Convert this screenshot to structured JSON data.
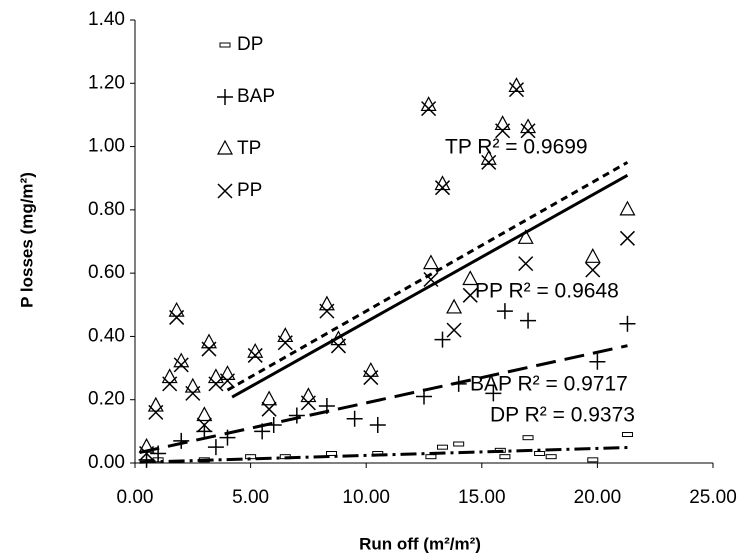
{
  "chart_data": {
    "type": "scatter",
    "x_label": "Run off (m²/m²)",
    "y_label": "P losses (mg/m²)",
    "xlim": [
      0,
      25
    ],
    "ylim": [
      0,
      1.4
    ],
    "xticks": [
      {
        "value": 0,
        "label": "0.00"
      },
      {
        "value": 5,
        "label": "5.00"
      },
      {
        "value": 10,
        "label": "10.00"
      },
      {
        "value": 15,
        "label": "15.00"
      },
      {
        "value": 20,
        "label": "20.00"
      },
      {
        "value": 25,
        "label": "25.00"
      }
    ],
    "yticks": [
      {
        "value": 0,
        "label": "0.00"
      },
      {
        "value": 0.2,
        "label": "0.20"
      },
      {
        "value": 0.4,
        "label": "0.40"
      },
      {
        "value": 0.6,
        "label": "0.60"
      },
      {
        "value": 0.8,
        "label": "0.80"
      },
      {
        "value": 1.0,
        "label": "1.00"
      },
      {
        "value": 1.2,
        "label": "1.20"
      },
      {
        "value": 1.4,
        "label": "1.40"
      }
    ],
    "series": [
      {
        "name": "DP",
        "marker": "dash",
        "color": "#000000",
        "x": [
          21.3,
          17.0,
          14.0,
          13.3,
          15.8,
          17.5,
          19.8,
          10.5,
          8.5,
          6.5,
          5.0,
          3.0,
          1.0,
          12.8,
          16.0,
          18.0
        ],
        "values": [
          0.09,
          0.08,
          0.06,
          0.05,
          0.04,
          0.03,
          0.01,
          0.03,
          0.03,
          0.02,
          0.02,
          0.01,
          0.01,
          0.02,
          0.02,
          0.02
        ]
      },
      {
        "name": "BAP",
        "marker": "plus",
        "color": "#000000",
        "x": [
          13.3,
          16.0,
          17.0,
          15.5,
          14.0,
          12.5,
          10.5,
          9.5,
          8.3,
          7.0,
          5.5,
          4.0,
          3.0,
          2.0,
          1.0,
          20.0,
          21.3,
          6.0,
          3.5,
          0.5
        ],
        "values": [
          0.39,
          0.48,
          0.45,
          0.22,
          0.25,
          0.21,
          0.12,
          0.14,
          0.18,
          0.15,
          0.1,
          0.08,
          0.1,
          0.07,
          0.03,
          0.32,
          0.44,
          0.12,
          0.05,
          0.01
        ]
      },
      {
        "name": "TP",
        "marker": "triangle",
        "color": "#000000",
        "x": [
          1.8,
          2.0,
          3.2,
          3.5,
          4.0,
          5.2,
          6.5,
          8.3,
          8.8,
          10.2,
          12.7,
          13.3,
          12.8,
          14.5,
          13.8,
          15.3,
          15.9,
          16.5,
          17.0,
          16.9,
          19.8,
          21.3,
          1.5,
          0.9,
          2.5,
          3.0,
          0.5,
          7.5,
          5.8
        ],
        "values": [
          0.48,
          0.32,
          0.38,
          0.27,
          0.28,
          0.35,
          0.4,
          0.5,
          0.39,
          0.29,
          1.13,
          0.88,
          0.63,
          0.58,
          0.49,
          0.96,
          1.07,
          1.19,
          1.06,
          0.71,
          0.65,
          0.8,
          0.27,
          0.18,
          0.24,
          0.15,
          0.05,
          0.21,
          0.2
        ]
      },
      {
        "name": "PP",
        "marker": "cross",
        "color": "#000000",
        "x": [
          1.8,
          2.0,
          3.2,
          3.5,
          4.0,
          5.2,
          6.5,
          8.3,
          8.8,
          10.2,
          12.7,
          13.3,
          12.8,
          14.5,
          13.8,
          15.3,
          15.9,
          16.5,
          17.0,
          16.9,
          19.8,
          21.3,
          1.5,
          0.9,
          2.5,
          3.0,
          0.5,
          7.5,
          5.8
        ],
        "values": [
          0.46,
          0.31,
          0.36,
          0.25,
          0.26,
          0.34,
          0.38,
          0.48,
          0.37,
          0.27,
          1.12,
          0.87,
          0.58,
          0.53,
          0.42,
          0.95,
          1.05,
          1.18,
          1.05,
          0.63,
          0.61,
          0.71,
          0.25,
          0.16,
          0.22,
          0.12,
          0.03,
          0.19,
          0.17
        ]
      }
    ],
    "trendlines": [
      {
        "series": "TP",
        "slope": 0.0416,
        "intercept": 0.064,
        "xlim": [
          4.0,
          21.3
        ],
        "dash": "7,5",
        "annotation": "TP R² = 0.9699"
      },
      {
        "series": "PP",
        "slope": 0.041,
        "intercept": 0.036,
        "xlim": [
          4.2,
          21.3
        ],
        "dash": "none",
        "annotation": "PP R² = 0.9648"
      },
      {
        "series": "BAP",
        "slope": 0.016,
        "intercept": 0.03,
        "xlim": [
          0.2,
          21.3
        ],
        "dash": "20,9",
        "annotation": "BAP R² = 0.9717"
      },
      {
        "series": "DP",
        "slope": 0.0022,
        "intercept": 0.002,
        "xlim": [
          0.2,
          21.3
        ],
        "dash": "16,5,3,5",
        "annotation": "DP R² = 0.9373"
      }
    ]
  }
}
